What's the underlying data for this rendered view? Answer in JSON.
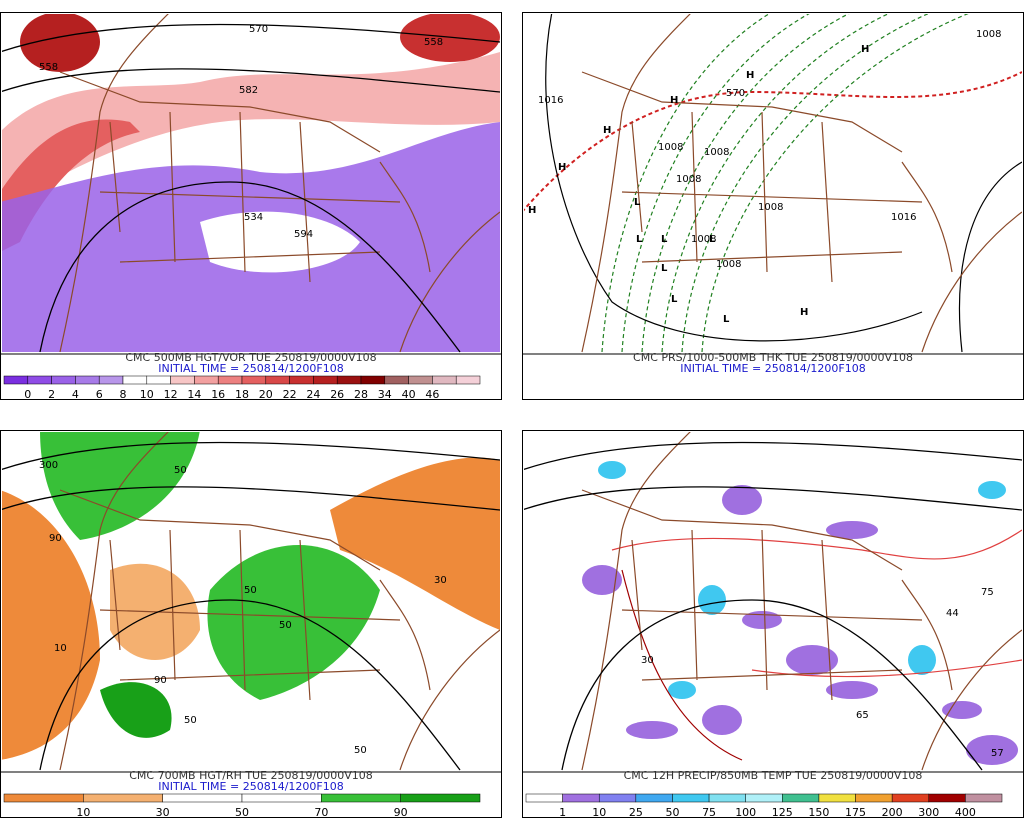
{
  "panels": [
    {
      "caption": "CMC 500MB HGT/VOR TUE 250819/0000V108",
      "initial_time": "INITIAL TIME = 250814/1200F108",
      "colorbar": {
        "labels": [
          0,
          2,
          4,
          6,
          8,
          10,
          12,
          14,
          16,
          18,
          20,
          22,
          24,
          26,
          28,
          34,
          40,
          46
        ],
        "colors": [
          "#7a2fe0",
          "#8f4ce6",
          "#9a62e8",
          "#a77be8",
          "#b896ea",
          "#ffffff",
          "#ffffff",
          "#f7c6c6",
          "#f2a0a0",
          "#ec8080",
          "#e46060",
          "#d84848",
          "#c83030",
          "#b52020",
          "#9a1010",
          "#800000",
          "#a06060",
          "#c09090",
          "#e0b8c0",
          "#f4d0d8"
        ]
      },
      "map_labels": [
        "570",
        "558",
        "582",
        "534",
        "594",
        "558"
      ]
    },
    {
      "caption": "CMC PRS/1000-500MB THK TUE 250819/0000V108",
      "initial_time": "INITIAL TIME = 250814/1200F108",
      "map_labels": [
        "1008",
        "1016",
        "1008",
        "1008",
        "1008",
        "1008",
        "570",
        "1016",
        "1008",
        "1008",
        "H",
        "H",
        "H",
        "H",
        "H",
        "H",
        "H",
        "L",
        "L",
        "L",
        "L",
        "L",
        "L",
        "L"
      ]
    },
    {
      "caption": "CMC 700MB HGT/RH TUE 250819/0000V108",
      "initial_time": "INITIAL TIME = 250814/1200F108",
      "colorbar": {
        "labels": [
          10,
          30,
          50,
          70,
          90
        ],
        "colors": [
          "#ee8a3a",
          "#f4b070",
          "#ffffff",
          "#ffffff",
          "#38c038",
          "#18a018"
        ]
      },
      "map_labels": [
        "300",
        "50",
        "90",
        "50",
        "10",
        "50",
        "90",
        "50",
        "30",
        "50"
      ]
    },
    {
      "caption": "CMC 12H PRECIP/850MB TEMP TUE 250819/0000V108",
      "colorbar": {
        "labels": [
          1,
          10,
          25,
          50,
          75,
          100,
          125,
          150,
          175,
          200,
          300,
          400
        ],
        "colors": [
          "#ffffff",
          "#a070e0",
          "#8080f0",
          "#40a8f0",
          "#40c8f0",
          "#80e0f0",
          "#b0f0f8",
          "#40c090",
          "#f0e040",
          "#f0a030",
          "#e04020",
          "#a00000",
          "#c090a0"
        ]
      },
      "map_labels": [
        "30",
        "65",
        "75",
        "44",
        "57"
      ]
    }
  ]
}
